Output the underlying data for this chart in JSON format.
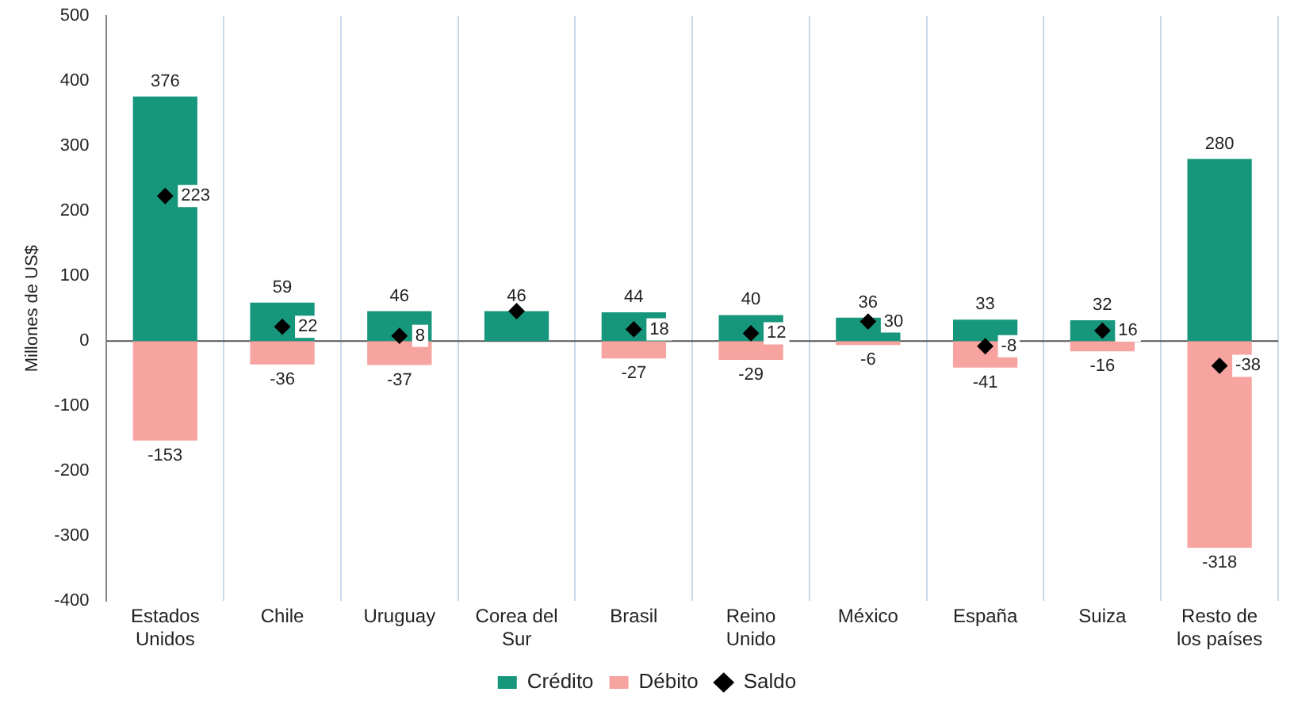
{
  "chart_data": {
    "type": "bar",
    "ylabel": "Millones de US$",
    "categories": [
      "Estados Unidos",
      "Chile",
      "Uruguay",
      "Corea del Sur",
      "Brasil",
      "Reino Unido",
      "México",
      "España",
      "Suiza",
      "Resto de los países"
    ],
    "series": [
      {
        "name": "Crédito",
        "color": "#16967b",
        "values": [
          376,
          59,
          46,
          46,
          44,
          40,
          36,
          33,
          32,
          280
        ],
        "value_labels": [
          "376",
          "59",
          "46",
          "46",
          "44",
          "40",
          "36",
          "33",
          "32",
          "280"
        ]
      },
      {
        "name": "Débito",
        "color": "#f7a3a0",
        "values": [
          -153,
          -36,
          -37,
          0,
          -27,
          -29,
          -6,
          -41,
          -16,
          -318
        ],
        "value_labels": [
          "-153",
          "-36",
          "-37",
          null,
          "-27",
          "-29",
          "-6",
          "-41",
          "-16",
          "-318"
        ]
      },
      {
        "name": "Saldo",
        "type": "scatter",
        "color": "#000000",
        "marker": "diamond",
        "x": [
          "Estados Unidos",
          "Chile",
          "Uruguay",
          "Corea del Sur",
          "Brasil",
          "Reino Unido",
          "México",
          "España",
          "Suiza",
          "Resto de los países"
        ],
        "values": [
          223,
          22,
          8,
          46,
          18,
          12,
          30,
          -8,
          16,
          -38
        ],
        "value_labels": [
          "223",
          "22",
          "8",
          null,
          "18",
          "12",
          "30",
          "-8",
          "16",
          "-38"
        ]
      }
    ],
    "stacked": true,
    "ylim": [
      -400,
      500
    ],
    "yticks": [
      -400,
      -300,
      -200,
      -100,
      0,
      100,
      200,
      300,
      400,
      500
    ],
    "grid": "x",
    "legend": "bottom"
  }
}
